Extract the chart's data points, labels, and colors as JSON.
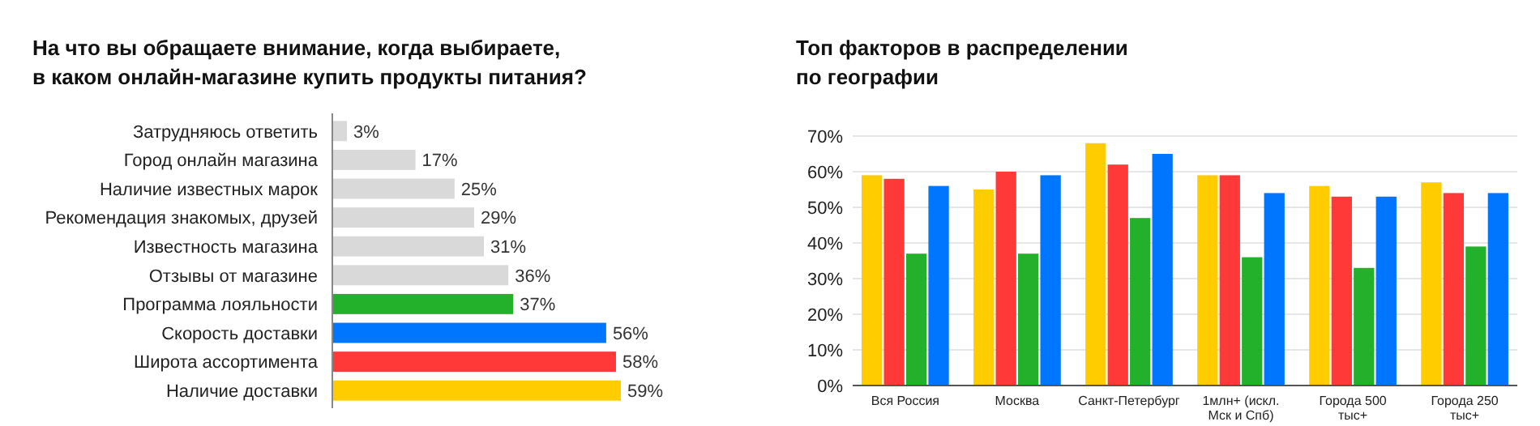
{
  "chart_data": [
    {
      "type": "bar",
      "orientation": "horizontal",
      "title": "На что вы обращаете внимание, когда выбираете,\nв каком онлайн-магазине купить продукты питания?",
      "categories": [
        "Затрудняюсь ответить",
        "Город онлайн магазина",
        "Наличие известных марок",
        "Рекомендация знакомых, друзей",
        "Известность магазина",
        "Отзывы от магазине",
        "Программа лояльности",
        "Скорость доставки",
        "Широта ассортимента",
        "Наличие доставки"
      ],
      "values": [
        3,
        17,
        25,
        29,
        31,
        36,
        37,
        56,
        58,
        59
      ],
      "colors": [
        "#d9d9d9",
        "#d9d9d9",
        "#d9d9d9",
        "#d9d9d9",
        "#d9d9d9",
        "#d9d9d9",
        "#23b02b",
        "#0076ff",
        "#ff3838",
        "#ffcc00"
      ],
      "value_labels": [
        "3%",
        "17%",
        "25%",
        "29%",
        "31%",
        "36%",
        "37%",
        "56%",
        "58%",
        "59%"
      ]
    },
    {
      "type": "bar",
      "title": "Топ факторов в распределении\nпо географии",
      "categories": [
        "Вся Россия",
        "Москва",
        "Санкт-Петербург",
        "1млн+ (искл. Мск и Спб)",
        "Города 500 тыс+",
        "Города 250 тыс+"
      ],
      "series": [
        {
          "color": "#ffcc00",
          "values": [
            59,
            55,
            68,
            59,
            56,
            57
          ]
        },
        {
          "color": "#ff3838",
          "values": [
            58,
            60,
            62,
            59,
            53,
            54
          ]
        },
        {
          "color": "#23b02b",
          "values": [
            37,
            37,
            47,
            36,
            33,
            39
          ]
        },
        {
          "color": "#0076ff",
          "values": [
            56,
            59,
            65,
            54,
            53,
            54
          ]
        }
      ],
      "ylim": [
        0,
        70
      ],
      "yticks": [
        {
          "value": 0,
          "label": "0%"
        },
        {
          "value": 10,
          "label": "10%"
        },
        {
          "value": 20,
          "label": "20%"
        },
        {
          "value": 30,
          "label": "30%"
        },
        {
          "value": 40,
          "label": "40%"
        },
        {
          "value": 50,
          "label": "50%"
        },
        {
          "value": 60,
          "label": "60%"
        },
        {
          "value": 70,
          "label": "70%"
        }
      ],
      "grid": "y"
    }
  ]
}
